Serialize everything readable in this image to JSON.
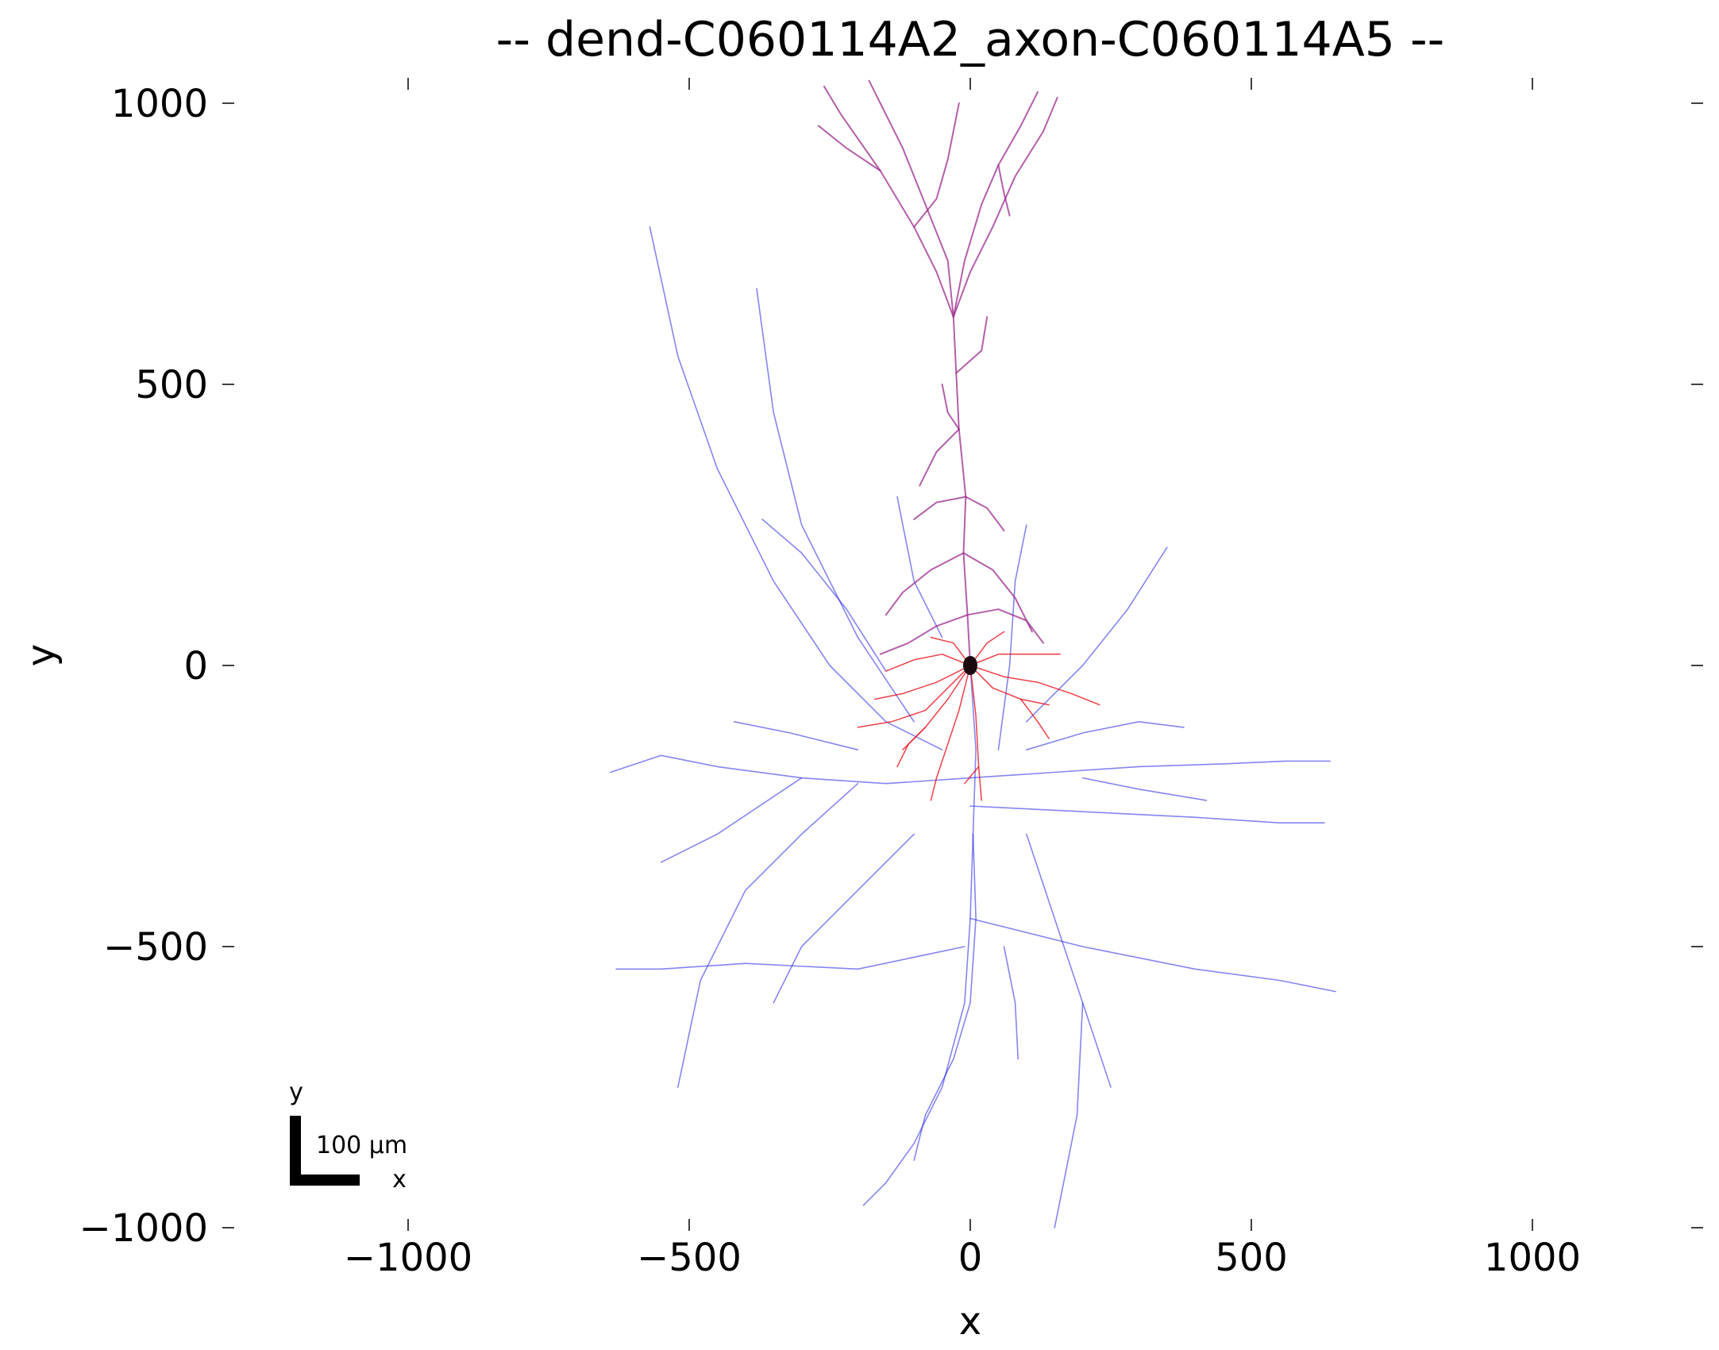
{
  "chart_data": {
    "type": "scatter",
    "title": "-- dend-C060114A2_axon-C060114A5 --",
    "xlabel": "x",
    "ylabel": "y",
    "xlim": [
      -1200,
      1300
    ],
    "ylim": [
      -1000,
      1050
    ],
    "x_ticks": [
      -1000,
      -500,
      0,
      500,
      1000
    ],
    "x_tick_labels": [
      "−1000",
      "−500",
      "0",
      "500",
      "1000"
    ],
    "y_ticks": [
      1000,
      500,
      0,
      -500,
      -1000
    ],
    "y_tick_labels": [
      "1000",
      "500",
      "0",
      "−500",
      "−1000"
    ],
    "grid": false,
    "colors": {
      "soma": "#1a0a10",
      "apical_dendrite": "#9b2a8c",
      "basal_dendrite": "#e8101a",
      "axon": "#2020e8"
    },
    "scale_bar": {
      "label": "100 μm",
      "x_label": "x",
      "y_label": "y",
      "length": 100
    },
    "soma": {
      "x": 0,
      "y": 0
    },
    "series": [
      {
        "part": "apical_dendrite",
        "color": "#9b2a8c",
        "polylines": [
          [
            [
              0,
              0
            ],
            [
              -5,
              90
            ],
            [
              -12,
              200
            ],
            [
              -8,
              300
            ],
            [
              -20,
              420
            ],
            [
              -25,
              520
            ],
            [
              -30,
              620
            ]
          ],
          [
            [
              -30,
              620
            ],
            [
              -60,
              700
            ],
            [
              -100,
              780
            ],
            [
              -160,
              880
            ],
            [
              -230,
              980
            ],
            [
              -260,
              1030
            ]
          ],
          [
            [
              -30,
              620
            ],
            [
              -40,
              720
            ],
            [
              -80,
              820
            ],
            [
              -120,
              920
            ],
            [
              -160,
              1000
            ],
            [
              -180,
              1040
            ]
          ],
          [
            [
              -30,
              620
            ],
            [
              -10,
              720
            ],
            [
              20,
              820
            ],
            [
              50,
              890
            ],
            [
              90,
              960
            ],
            [
              120,
              1020
            ]
          ],
          [
            [
              -30,
              620
            ],
            [
              0,
              700
            ],
            [
              40,
              780
            ],
            [
              80,
              870
            ],
            [
              130,
              950
            ],
            [
              155,
              1010
            ]
          ],
          [
            [
              50,
              890
            ],
            [
              60,
              840
            ],
            [
              70,
              800
            ]
          ],
          [
            [
              -160,
              880
            ],
            [
              -220,
              920
            ],
            [
              -270,
              960
            ]
          ],
          [
            [
              -100,
              780
            ],
            [
              -60,
              830
            ],
            [
              -40,
              900
            ],
            [
              -20,
              1000
            ]
          ],
          [
            [
              -20,
              420
            ],
            [
              -60,
              380
            ],
            [
              -90,
              320
            ]
          ],
          [
            [
              -12,
              200
            ],
            [
              -70,
              170
            ],
            [
              -120,
              130
            ],
            [
              -150,
              90
            ]
          ],
          [
            [
              -12,
              200
            ],
            [
              40,
              170
            ],
            [
              80,
              120
            ],
            [
              110,
              60
            ]
          ],
          [
            [
              -8,
              300
            ],
            [
              30,
              280
            ],
            [
              60,
              240
            ]
          ],
          [
            [
              -5,
              90
            ],
            [
              -60,
              70
            ],
            [
              -110,
              40
            ],
            [
              -160,
              20
            ]
          ],
          [
            [
              -5,
              90
            ],
            [
              50,
              100
            ],
            [
              100,
              80
            ],
            [
              130,
              40
            ]
          ],
          [
            [
              -25,
              520
            ],
            [
              20,
              560
            ],
            [
              30,
              620
            ]
          ],
          [
            [
              -20,
              420
            ],
            [
              -40,
              450
            ],
            [
              -50,
              500
            ]
          ],
          [
            [
              -8,
              300
            ],
            [
              -60,
              290
            ],
            [
              -100,
              260
            ]
          ]
        ]
      },
      {
        "part": "basal_dendrite",
        "color": "#e8101a",
        "polylines": [
          [
            [
              0,
              0
            ],
            [
              -60,
              -30
            ],
            [
              -120,
              -50
            ],
            [
              -170,
              -60
            ]
          ],
          [
            [
              0,
              0
            ],
            [
              -40,
              -60
            ],
            [
              -80,
              -110
            ],
            [
              -120,
              -150
            ]
          ],
          [
            [
              0,
              0
            ],
            [
              -20,
              -80
            ],
            [
              -40,
              -140
            ],
            [
              -60,
              -200
            ],
            [
              -70,
              -240
            ]
          ],
          [
            [
              0,
              0
            ],
            [
              10,
              -90
            ],
            [
              15,
              -180
            ],
            [
              20,
              -240
            ]
          ],
          [
            [
              0,
              0
            ],
            [
              40,
              -40
            ],
            [
              90,
              -60
            ],
            [
              140,
              -70
            ]
          ],
          [
            [
              0,
              0
            ],
            [
              60,
              -20
            ],
            [
              120,
              -30
            ],
            [
              180,
              -50
            ],
            [
              230,
              -70
            ]
          ],
          [
            [
              0,
              0
            ],
            [
              50,
              20
            ],
            [
              100,
              20
            ],
            [
              160,
              20
            ]
          ],
          [
            [
              0,
              0
            ],
            [
              -50,
              20
            ],
            [
              -100,
              10
            ],
            [
              -150,
              -10
            ]
          ],
          [
            [
              0,
              0
            ],
            [
              30,
              40
            ],
            [
              60,
              60
            ]
          ],
          [
            [
              0,
              0
            ],
            [
              -30,
              40
            ],
            [
              -70,
              50
            ]
          ],
          [
            [
              0,
              0
            ],
            [
              -80,
              -80
            ],
            [
              -140,
              -100
            ],
            [
              -200,
              -110
            ]
          ],
          [
            [
              -80,
              -110
            ],
            [
              -110,
              -140
            ],
            [
              -130,
              -180
            ]
          ],
          [
            [
              90,
              -60
            ],
            [
              120,
              -100
            ],
            [
              140,
              -130
            ]
          ],
          [
            [
              15,
              -180
            ],
            [
              -10,
              -210
            ]
          ]
        ]
      },
      {
        "part": "axon",
        "color": "#2020e8",
        "polylines": [
          [
            [
              0,
              0
            ],
            [
              10,
              -150
            ],
            [
              5,
              -300
            ],
            [
              0,
              -450
            ],
            [
              -10,
              -600
            ],
            [
              -50,
              -750
            ],
            [
              -100,
              -850
            ],
            [
              -150,
              -920
            ],
            [
              -190,
              -960
            ]
          ],
          [
            [
              5,
              -300
            ],
            [
              10,
              -450
            ],
            [
              0,
              -600
            ],
            [
              -30,
              -700
            ],
            [
              -80,
              -800
            ],
            [
              -100,
              -880
            ]
          ],
          [
            [
              0,
              -200
            ],
            [
              -150,
              -210
            ],
            [
              -300,
              -200
            ],
            [
              -450,
              -180
            ],
            [
              -550,
              -160
            ],
            [
              -640,
              -190
            ]
          ],
          [
            [
              0,
              -200
            ],
            [
              150,
              -190
            ],
            [
              300,
              -180
            ],
            [
              450,
              -175
            ],
            [
              560,
              -170
            ],
            [
              640,
              -170
            ]
          ],
          [
            [
              0,
              -250
            ],
            [
              200,
              -260
            ],
            [
              400,
              -270
            ],
            [
              550,
              -280
            ],
            [
              630,
              -280
            ]
          ],
          [
            [
              0,
              -450
            ],
            [
              200,
              -500
            ],
            [
              400,
              -540
            ],
            [
              550,
              -560
            ],
            [
              650,
              -580
            ]
          ],
          [
            [
              -10,
              -500
            ],
            [
              -200,
              -540
            ],
            [
              -400,
              -530
            ],
            [
              -550,
              -540
            ],
            [
              -630,
              -540
            ]
          ],
          [
            [
              -50,
              -150
            ],
            [
              -150,
              -100
            ],
            [
              -250,
              0
            ],
            [
              -350,
              150
            ],
            [
              -450,
              350
            ],
            [
              -520,
              550
            ],
            [
              -570,
              780
            ]
          ],
          [
            [
              -100,
              -100
            ],
            [
              -200,
              50
            ],
            [
              -300,
              250
            ],
            [
              -350,
              450
            ],
            [
              -380,
              670
            ]
          ],
          [
            [
              -150,
              -10
            ],
            [
              -220,
              100
            ],
            [
              -300,
              200
            ],
            [
              -370,
              260
            ]
          ],
          [
            [
              100,
              -100
            ],
            [
              200,
              0
            ],
            [
              280,
              100
            ],
            [
              350,
              210
            ]
          ],
          [
            [
              100,
              -150
            ],
            [
              200,
              -120
            ],
            [
              300,
              -100
            ],
            [
              380,
              -110
            ]
          ],
          [
            [
              -200,
              -210
            ],
            [
              -300,
              -300
            ],
            [
              -400,
              -400
            ],
            [
              -480,
              -560
            ],
            [
              -520,
              -750
            ]
          ],
          [
            [
              -100,
              -300
            ],
            [
              -200,
              -400
            ],
            [
              -300,
              -500
            ],
            [
              -350,
              -600
            ]
          ],
          [
            [
              100,
              -300
            ],
            [
              150,
              -450
            ],
            [
              200,
              -600
            ],
            [
              250,
              -750
            ]
          ],
          [
            [
              200,
              -600
            ],
            [
              190,
              -800
            ],
            [
              170,
              -900
            ],
            [
              150,
              -1000
            ]
          ],
          [
            [
              50,
              -150
            ],
            [
              70,
              0
            ],
            [
              80,
              150
            ],
            [
              100,
              250
            ]
          ],
          [
            [
              60,
              -500
            ],
            [
              80,
              -600
            ],
            [
              85,
              -700
            ]
          ],
          [
            [
              -300,
              -200
            ],
            [
              -450,
              -300
            ],
            [
              -550,
              -350
            ]
          ],
          [
            [
              200,
              -200
            ],
            [
              300,
              -220
            ],
            [
              420,
              -240
            ]
          ],
          [
            [
              -50,
              50
            ],
            [
              -100,
              150
            ],
            [
              -120,
              250
            ],
            [
              -130,
              300
            ]
          ],
          [
            [
              -200,
              -150
            ],
            [
              -320,
              -120
            ],
            [
              -420,
              -100
            ]
          ]
        ]
      }
    ]
  }
}
